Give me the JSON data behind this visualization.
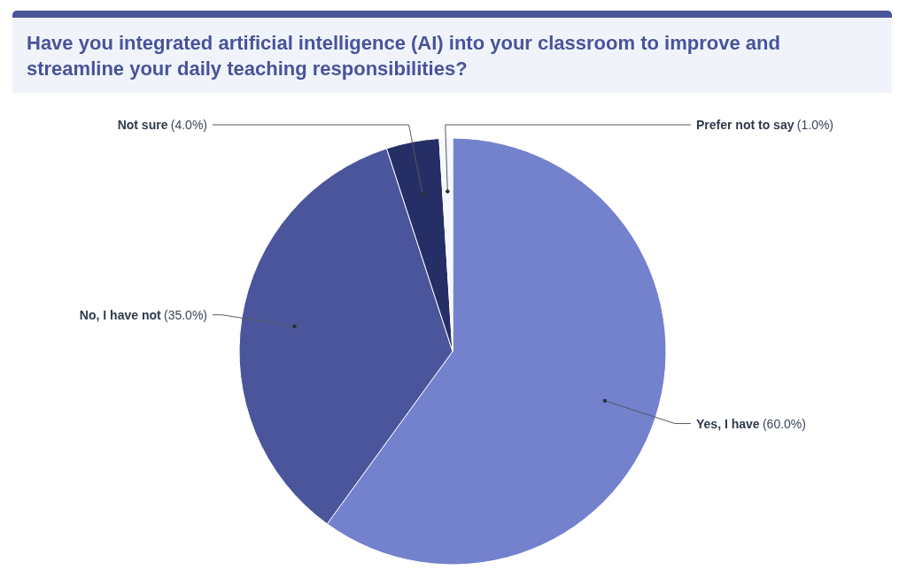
{
  "chart_data": {
    "type": "pie",
    "title": "Have you integrated artificial intelligence (AI) into your classroom to improve and streamline your daily teaching responsibilities?",
    "categories": [
      "Yes, I have",
      "No, I have not",
      "Not sure",
      "Prefer not to say"
    ],
    "values": [
      60,
      35,
      4,
      1
    ],
    "colors": [
      "#7481cd",
      "#4a559b",
      "#262e66",
      "#f4f7fb"
    ],
    "value_labels": [
      "(60.0%)",
      "(35.0%)",
      "(4.0%)",
      "(1.0%)"
    ]
  }
}
